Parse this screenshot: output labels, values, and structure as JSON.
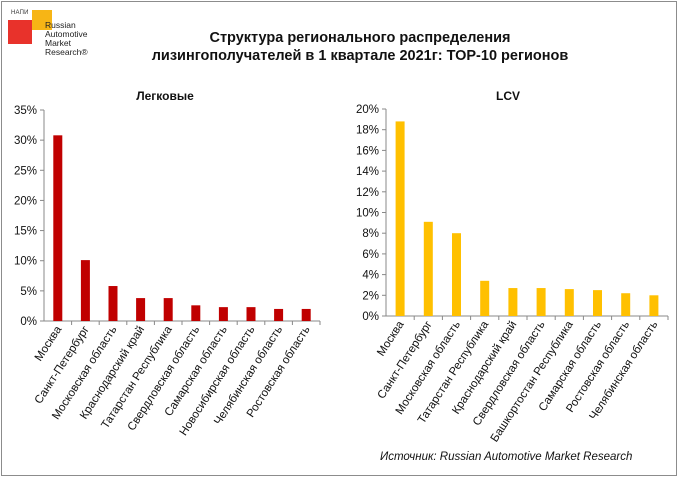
{
  "logo": {
    "tag": "НАПИ",
    "lines": [
      "Russian",
      "Automotive",
      "Market",
      "Research®"
    ]
  },
  "title": {
    "line1": "Структура регионального распределения",
    "line2": "лизингополучателей в 1 квартале 2021г: ТОР-10 регионов"
  },
  "source": "Источник: Russian Automotive Market Research",
  "colors": {
    "left_bars": "#c00000",
    "right_bars": "#ffc000"
  },
  "chart_data": [
    {
      "type": "bar",
      "title": "Легковые",
      "categories": [
        "Москва",
        "Санкт-Петербург",
        "Московская область",
        "Краснодарский край",
        "Татарстан Республика",
        "Свердловская область",
        "Самарская область",
        "Новосибирская область",
        "Челябинская область",
        "Ростовская область"
      ],
      "values": [
        30.8,
        10.1,
        5.8,
        3.8,
        3.8,
        2.6,
        2.3,
        2.3,
        2.0,
        2.0
      ],
      "ylim": [
        0,
        35
      ],
      "yticks": [
        "0%",
        "5%",
        "10%",
        "15%",
        "20%",
        "25%",
        "30%",
        "35%"
      ],
      "unit": "%",
      "grid": false
    },
    {
      "type": "bar",
      "title": "LCV",
      "categories": [
        "Москва",
        "Санкт-Петербург",
        "Московская область",
        "Татарстан Республика",
        "Краснодарский край",
        "Свердловская область",
        "Башкортостан Республика",
        "Самарская область",
        "Ростовская область",
        "Челябинская область"
      ],
      "values": [
        18.8,
        9.1,
        8.0,
        3.4,
        2.7,
        2.7,
        2.6,
        2.5,
        2.2,
        2.0
      ],
      "ylim": [
        0,
        20
      ],
      "yticks": [
        "0%",
        "2%",
        "4%",
        "6%",
        "8%",
        "10%",
        "12%",
        "14%",
        "16%",
        "18%",
        "20%"
      ],
      "unit": "%",
      "grid": false
    }
  ]
}
